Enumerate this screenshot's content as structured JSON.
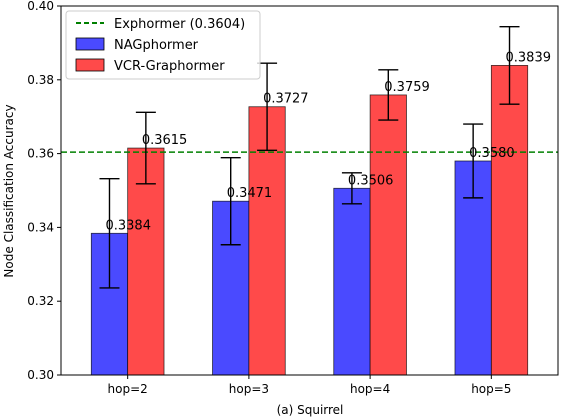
{
  "chart_data": {
    "type": "bar",
    "xlabel": "(a) Squirrel",
    "ylabel": "Node Classification Accuracy",
    "categories": [
      "hop=2",
      "hop=3",
      "hop=4",
      "hop=5"
    ],
    "ylim": [
      0.3,
      0.4
    ],
    "yticks": [
      "0.30",
      "0.32",
      "0.34",
      "0.36",
      "0.38",
      "0.40"
    ],
    "grid": false,
    "legend_position": "top-left",
    "series": [
      {
        "name": "NAGphormer",
        "color": "#4a4aff",
        "values": [
          0.3384,
          0.3471,
          0.3506,
          0.358
        ],
        "labels": [
          "0.3384",
          "0.3471",
          "0.3506",
          "0.3580"
        ],
        "errors": [
          0.0148,
          0.0118,
          0.0042,
          0.01
        ]
      },
      {
        "name": "VCR-Graphormer",
        "color": "#ff4a4a",
        "values": [
          0.3615,
          0.3727,
          0.3759,
          0.3839
        ],
        "labels": [
          "0.3615",
          "0.3727",
          "0.3759",
          "0.3839"
        ],
        "errors": [
          0.0097,
          0.0118,
          0.0068,
          0.0105
        ]
      }
    ],
    "reference_line": {
      "name": "Exphormer (0.3604)",
      "value": 0.3604,
      "color": "#008000",
      "style": "dashed"
    }
  }
}
